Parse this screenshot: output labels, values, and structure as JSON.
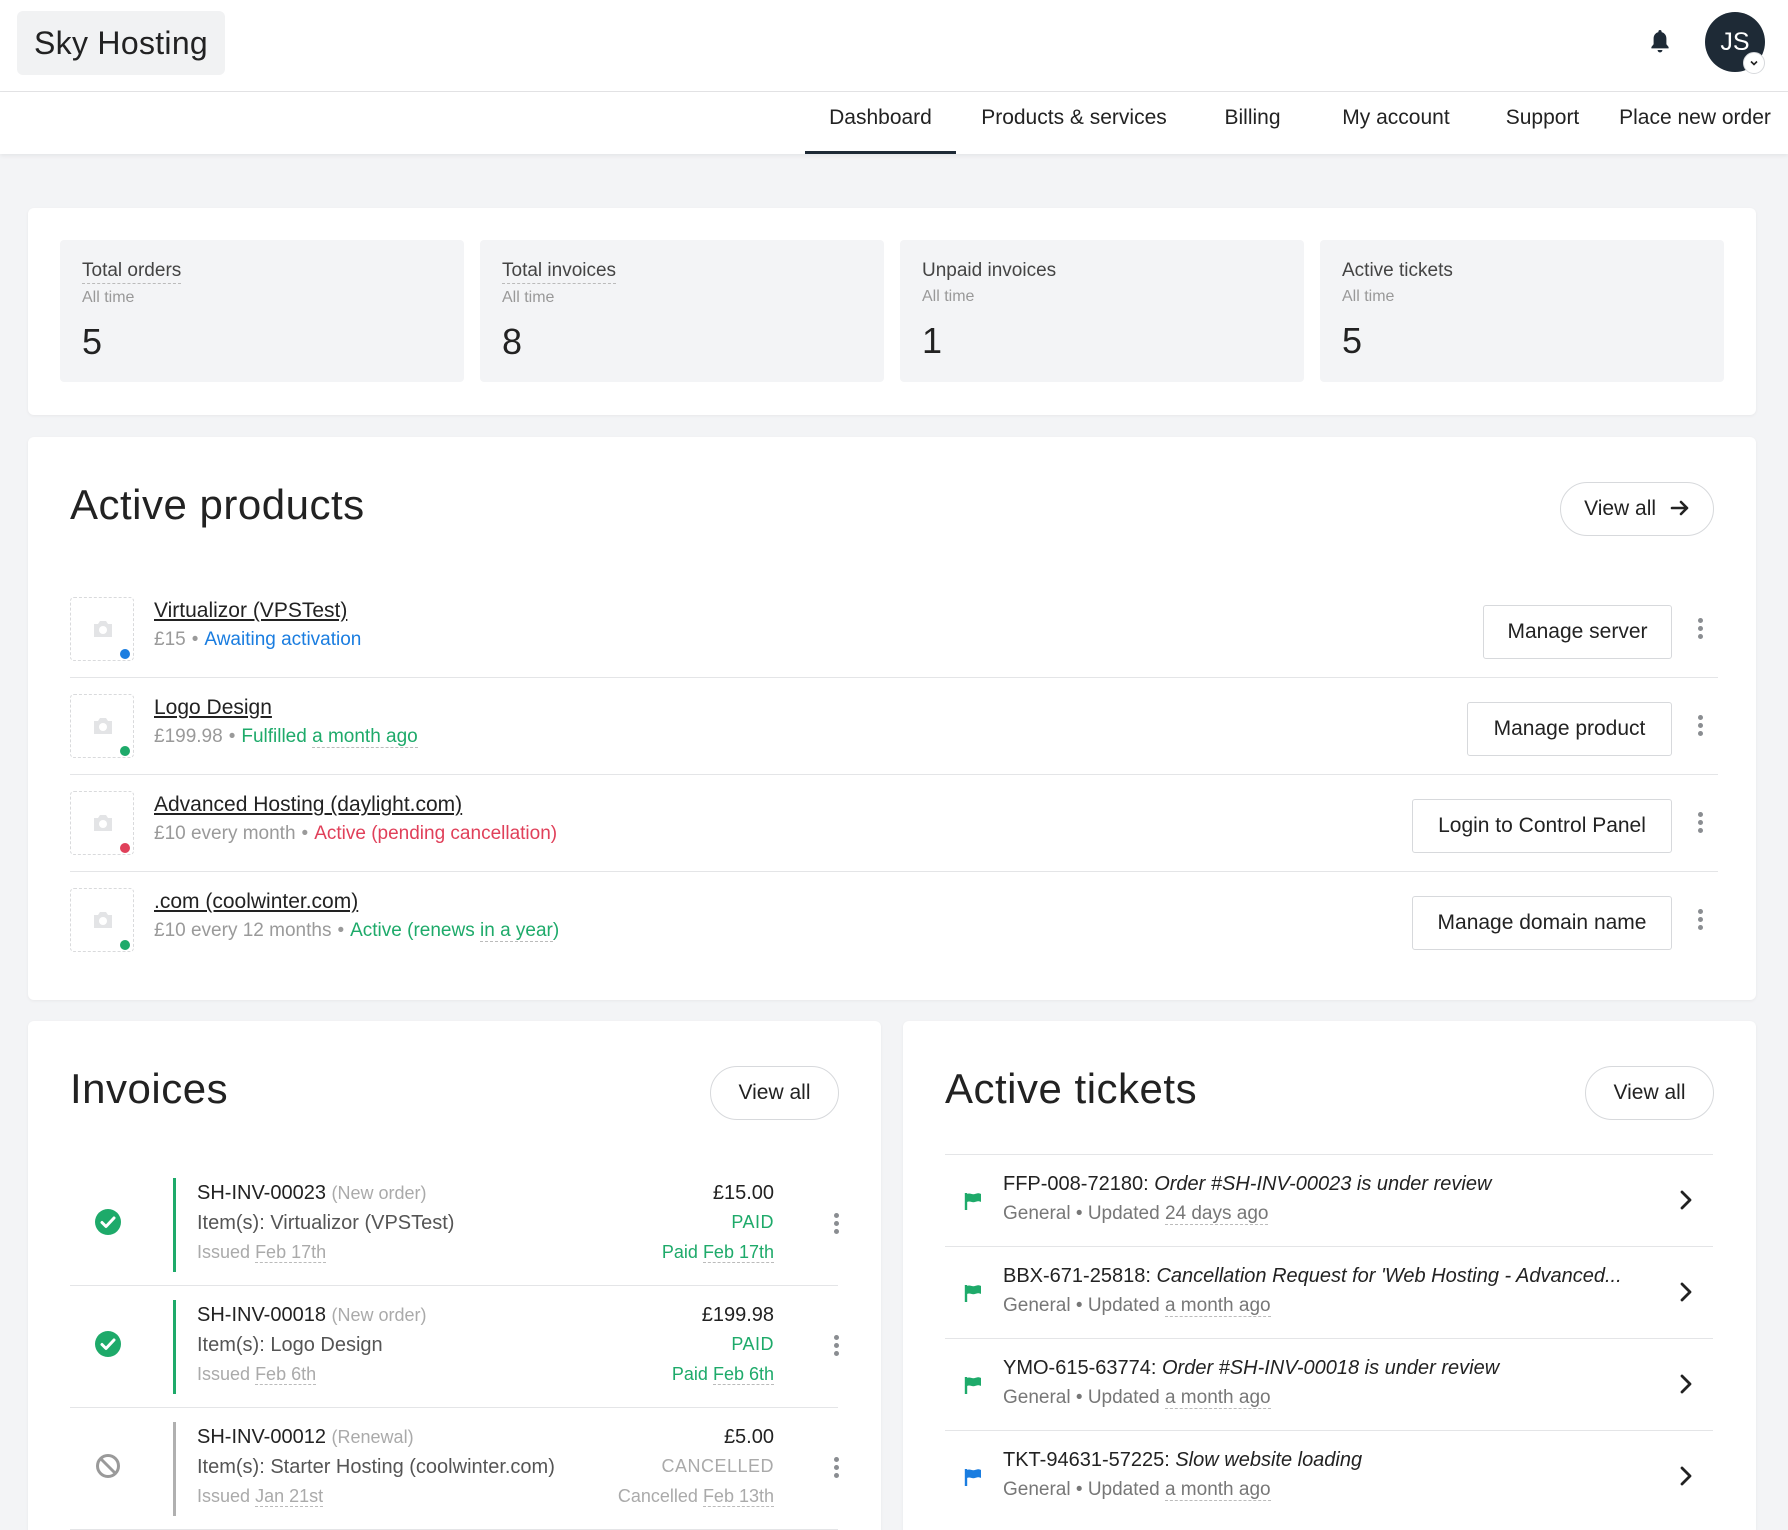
{
  "brand": "Sky Hosting",
  "user": {
    "initials": "JS"
  },
  "nav": [
    {
      "label": "Dashboard",
      "active": true
    },
    {
      "label": "Products & services"
    },
    {
      "label": "Billing"
    },
    {
      "label": "My account"
    },
    {
      "label": "Support"
    },
    {
      "label": "Place new order"
    }
  ],
  "stats": [
    {
      "title": "Total orders",
      "sub": "All time",
      "value": "5"
    },
    {
      "title": "Total invoices",
      "sub": "All time",
      "value": "8"
    },
    {
      "title": "Unpaid invoices",
      "sub": "All time",
      "value": "1"
    },
    {
      "title": "Active tickets",
      "sub": "All time",
      "value": "5"
    }
  ],
  "products": {
    "title": "Active products",
    "view_all": "View all",
    "items": [
      {
        "name": "Virtualizor (VPSTest)",
        "price": "£15",
        "status": "Awaiting activation",
        "status_extra": "",
        "dot_color": "#1a7de0",
        "status_color": "#1a7de0",
        "action": "Manage server"
      },
      {
        "name": "Logo Design",
        "price": "£199.98",
        "status": "Fulfilled",
        "status_extra": "a month ago",
        "dot_color": "#1eaa6a",
        "status_color": "#1eaa6a",
        "action": "Manage product"
      },
      {
        "name": "Advanced Hosting (daylight.com)",
        "price": "£10 every month",
        "status": "Active (pending cancellation)",
        "status_extra": "",
        "dot_color": "#e0405a",
        "status_color": "#e0405a",
        "action": "Login to Control Panel"
      },
      {
        "name": ".com (coolwinter.com)",
        "price": "£10 every 12 months",
        "status": "Active (renews",
        "status_extra": "in a year",
        "status_tail": ")",
        "dot_color": "#1eaa6a",
        "status_color": "#1eaa6a",
        "action": "Manage domain name"
      }
    ]
  },
  "invoices": {
    "title": "Invoices",
    "view_all": "View all",
    "items": [
      {
        "number": "SH-INV-00023",
        "type": "(New order)",
        "items": "Item(s): Virtualizor (VPSTest)",
        "issued_label": "Issued",
        "issued_date": "Feb 17th",
        "amount": "£15.00",
        "status": "PAID",
        "date_label": "Paid",
        "date": "Feb 17th",
        "state": "paid"
      },
      {
        "number": "SH-INV-00018",
        "type": "(New order)",
        "items": "Item(s): Logo Design",
        "issued_label": "Issued",
        "issued_date": "Feb 6th",
        "amount": "£199.98",
        "status": "PAID",
        "date_label": "Paid",
        "date": "Feb 6th",
        "state": "paid"
      },
      {
        "number": "SH-INV-00012",
        "type": "(Renewal)",
        "items": "Item(s): Starter Hosting (coolwinter.com)",
        "issued_label": "Issued",
        "issued_date": "Jan 21st",
        "amount": "£5.00",
        "status": "CANCELLED",
        "date_label": "Cancelled",
        "date": "Feb 13th",
        "state": "cancelled"
      }
    ],
    "colors": {
      "paid": "#1eaa6a",
      "cancelled": "#aaaaaa"
    }
  },
  "tickets": {
    "title": "Active tickets",
    "view_all": "View all",
    "items": [
      {
        "id": "FFP-008-72180:",
        "subject": "Order #SH-INV-00023 is under review",
        "dept": "General",
        "updated_label": "Updated",
        "updated": "24 days ago",
        "flag_color": "#1eaa6a"
      },
      {
        "id": "BBX-671-25818:",
        "subject": "Cancellation Request for 'Web Hosting - Advanced...",
        "dept": "General",
        "updated_label": "Updated",
        "updated": "a month ago",
        "flag_color": "#1eaa6a"
      },
      {
        "id": "YMO-615-63774:",
        "subject": "Order #SH-INV-00018 is under review",
        "dept": "General",
        "updated_label": "Updated",
        "updated": "a month ago",
        "flag_color": "#1eaa6a"
      },
      {
        "id": "TKT-94631-57225:",
        "subject": "Slow website loading",
        "dept": "General",
        "updated_label": "Updated",
        "updated": "a month ago",
        "flag_color": "#1a7de0"
      }
    ]
  }
}
